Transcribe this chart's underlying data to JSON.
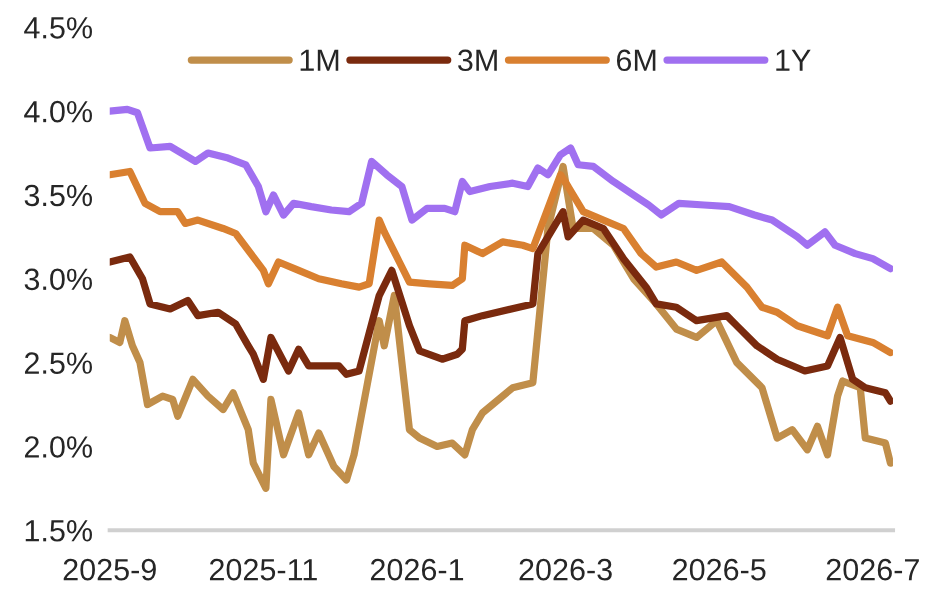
{
  "chart_data": {
    "type": "line",
    "xlim": [
      "2025-09-01",
      "2026-07-09"
    ],
    "xticks": [
      {
        "value": "2025-09-01",
        "label": "2025-9"
      },
      {
        "value": "2025-11-01",
        "label": "2025-11"
      },
      {
        "value": "2026-01-01",
        "label": "2026-1"
      },
      {
        "value": "2026-03-01",
        "label": "2026-3"
      },
      {
        "value": "2026-05-01",
        "label": "2026-5"
      },
      {
        "value": "2026-07-01",
        "label": "2026-7"
      }
    ],
    "ylim": [
      1.5,
      4.5
    ],
    "yticks": [
      {
        "value": 1.5,
        "label": "1.5%"
      },
      {
        "value": 2.0,
        "label": "2.0%"
      },
      {
        "value": 2.5,
        "label": "2.5%"
      },
      {
        "value": 3.0,
        "label": "3.0%"
      },
      {
        "value": 3.5,
        "label": "3.5%"
      },
      {
        "value": 4.0,
        "label": "4.0%"
      },
      {
        "value": 4.5,
        "label": "4.5%"
      }
    ],
    "grid": false,
    "legend": "top",
    "marker": "none",
    "line_style": "solid",
    "series": [
      {
        "name": "1M",
        "color": "#c08e4a",
        "x": [
          "2025-09-01",
          "2025-09-05",
          "2025-09-07",
          "2025-09-10",
          "2025-09-13",
          "2025-09-16",
          "2025-09-22",
          "2025-09-26",
          "2025-09-28",
          "2025-10-04",
          "2025-10-10",
          "2025-10-16",
          "2025-10-20",
          "2025-10-26",
          "2025-10-28",
          "2025-11-02",
          "2025-11-04",
          "2025-11-09",
          "2025-11-15",
          "2025-11-19",
          "2025-11-23",
          "2025-11-29",
          "2025-12-04",
          "2025-12-07",
          "2025-12-17",
          "2025-12-19",
          "2025-12-23",
          "2025-12-29",
          "2026-01-02",
          "2026-01-09",
          "2026-01-15",
          "2026-01-20",
          "2026-01-23",
          "2026-01-27",
          "2026-02-08",
          "2026-02-16",
          "2026-02-22",
          "2026-02-28",
          "2026-03-04",
          "2026-03-12",
          "2026-03-20",
          "2026-03-28",
          "2026-04-06",
          "2026-04-14",
          "2026-04-22",
          "2026-04-30",
          "2026-05-08",
          "2026-05-18",
          "2026-05-24",
          "2026-05-30",
          "2026-06-05",
          "2026-06-09",
          "2026-06-13",
          "2026-06-17",
          "2026-06-19",
          "2026-06-26",
          "2026-06-28",
          "2026-07-06",
          "2026-07-08"
        ],
        "values": [
          2.65,
          2.62,
          2.75,
          2.6,
          2.5,
          2.25,
          2.3,
          2.28,
          2.18,
          2.4,
          2.3,
          2.22,
          2.32,
          2.1,
          1.9,
          1.75,
          2.28,
          1.95,
          2.2,
          1.95,
          2.08,
          1.88,
          1.8,
          1.95,
          2.75,
          2.6,
          2.9,
          2.1,
          2.05,
          2.0,
          2.02,
          1.95,
          2.1,
          2.2,
          2.35,
          2.38,
          3.3,
          3.67,
          3.3,
          3.3,
          3.2,
          3.0,
          2.85,
          2.7,
          2.65,
          2.75,
          2.5,
          2.35,
          2.05,
          2.1,
          1.98,
          2.12,
          1.95,
          2.3,
          2.39,
          2.35,
          2.05,
          2.02,
          1.9
        ]
      },
      {
        "name": "3M",
        "color": "#7a2a0e",
        "x": [
          "2025-09-01",
          "2025-09-09",
          "2025-09-14",
          "2025-09-17",
          "2025-09-25",
          "2025-10-02",
          "2025-10-06",
          "2025-10-14",
          "2025-10-21",
          "2025-10-26",
          "2025-10-28",
          "2025-11-01",
          "2025-11-04",
          "2025-11-11",
          "2025-11-15",
          "2025-11-19",
          "2025-12-01",
          "2025-12-04",
          "2025-12-09",
          "2025-12-17",
          "2025-12-22",
          "2025-12-29",
          "2026-01-02",
          "2026-01-11",
          "2026-01-17",
          "2026-01-19",
          "2026-01-20",
          "2026-01-27",
          "2026-02-16",
          "2026-02-18",
          "2026-02-28",
          "2026-03-02",
          "2026-03-08",
          "2026-03-16",
          "2026-03-24",
          "2026-04-02",
          "2026-04-06",
          "2026-04-14",
          "2026-04-22",
          "2026-05-04",
          "2026-05-08",
          "2026-05-16",
          "2026-05-24",
          "2026-06-04",
          "2026-06-13",
          "2026-06-18",
          "2026-06-23",
          "2026-06-28",
          "2026-07-06",
          "2026-07-08"
        ],
        "values": [
          3.1,
          3.13,
          3.0,
          2.85,
          2.82,
          2.87,
          2.78,
          2.8,
          2.73,
          2.6,
          2.55,
          2.4,
          2.65,
          2.45,
          2.58,
          2.48,
          2.48,
          2.43,
          2.45,
          2.9,
          3.05,
          2.72,
          2.57,
          2.52,
          2.55,
          2.58,
          2.75,
          2.78,
          2.85,
          3.15,
          3.4,
          3.25,
          3.35,
          3.3,
          3.12,
          2.95,
          2.85,
          2.83,
          2.75,
          2.78,
          2.72,
          2.6,
          2.52,
          2.45,
          2.48,
          2.65,
          2.4,
          2.35,
          2.32,
          2.27
        ]
      },
      {
        "name": "6M",
        "color": "#d98030",
        "x": [
          "2025-09-01",
          "2025-09-09",
          "2025-09-15",
          "2025-09-21",
          "2025-09-28",
          "2025-10-01",
          "2025-10-06",
          "2025-10-16",
          "2025-10-21",
          "2025-11-01",
          "2025-11-03",
          "2025-11-07",
          "2025-11-15",
          "2025-11-23",
          "2025-12-02",
          "2025-12-09",
          "2025-12-13",
          "2025-12-17",
          "2025-12-19",
          "2025-12-25",
          "2025-12-29",
          "2026-01-06",
          "2026-01-15",
          "2026-01-19",
          "2026-01-20",
          "2026-01-27",
          "2026-02-04",
          "2026-02-12",
          "2026-02-16",
          "2026-02-27",
          "2026-03-02",
          "2026-03-08",
          "2026-03-16",
          "2026-03-24",
          "2026-03-31",
          "2026-04-06",
          "2026-04-14",
          "2026-04-22",
          "2026-05-02",
          "2026-05-12",
          "2026-05-18",
          "2026-05-24",
          "2026-06-01",
          "2026-06-13",
          "2026-06-17",
          "2026-06-21",
          "2026-07-01",
          "2026-07-08"
        ],
        "values": [
          3.62,
          3.64,
          3.45,
          3.4,
          3.4,
          3.33,
          3.35,
          3.3,
          3.27,
          3.05,
          2.97,
          3.1,
          3.05,
          3.0,
          2.97,
          2.95,
          2.97,
          3.35,
          3.28,
          3.1,
          2.98,
          2.97,
          2.96,
          3.0,
          3.2,
          3.15,
          3.22,
          3.2,
          3.18,
          3.62,
          3.55,
          3.4,
          3.35,
          3.3,
          3.15,
          3.07,
          3.1,
          3.05,
          3.1,
          2.95,
          2.83,
          2.8,
          2.72,
          2.66,
          2.83,
          2.66,
          2.62,
          2.56
        ]
      },
      {
        "name": "1Y",
        "color": "#a070f0",
        "x": [
          "2025-09-01",
          "2025-09-08",
          "2025-09-12",
          "2025-09-17",
          "2025-09-25",
          "2025-10-05",
          "2025-10-10",
          "2025-10-18",
          "2025-10-25",
          "2025-10-30",
          "2025-11-02",
          "2025-11-05",
          "2025-11-09",
          "2025-11-13",
          "2025-11-20",
          "2025-11-28",
          "2025-12-05",
          "2025-12-10",
          "2025-12-14",
          "2025-12-20",
          "2025-12-26",
          "2025-12-30",
          "2026-01-05",
          "2026-01-12",
          "2026-01-16",
          "2026-01-19",
          "2026-01-22",
          "2026-01-30",
          "2026-02-08",
          "2026-02-14",
          "2026-02-18",
          "2026-02-22",
          "2026-02-27",
          "2026-03-03",
          "2026-03-06",
          "2026-03-12",
          "2026-03-20",
          "2026-03-28",
          "2026-04-03",
          "2026-04-08",
          "2026-04-15",
          "2026-04-25",
          "2026-05-05",
          "2026-05-15",
          "2026-05-22",
          "2026-06-01",
          "2026-06-05",
          "2026-06-12",
          "2026-06-16",
          "2026-06-24",
          "2026-07-01",
          "2026-07-08"
        ],
        "values": [
          4.0,
          4.01,
          3.99,
          3.78,
          3.79,
          3.7,
          3.75,
          3.72,
          3.68,
          3.55,
          3.4,
          3.5,
          3.38,
          3.45,
          3.43,
          3.41,
          3.4,
          3.45,
          3.7,
          3.62,
          3.55,
          3.35,
          3.42,
          3.42,
          3.4,
          3.58,
          3.52,
          3.55,
          3.57,
          3.55,
          3.66,
          3.62,
          3.74,
          3.78,
          3.68,
          3.67,
          3.58,
          3.5,
          3.44,
          3.38,
          3.45,
          3.44,
          3.43,
          3.38,
          3.35,
          3.25,
          3.2,
          3.28,
          3.2,
          3.15,
          3.12,
          3.06
        ]
      }
    ]
  }
}
